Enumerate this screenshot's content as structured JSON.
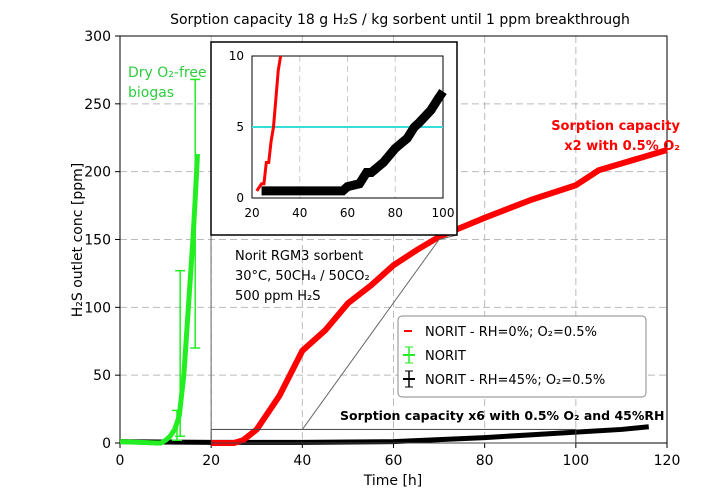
{
  "chart_data": {
    "type": "line",
    "title": "Sorption capacity 18 g H₂S / kg sorbent until 1 ppm breakthrough",
    "xlabel": "Time [h]",
    "ylabel": "H₂S outlet conc [ppm]",
    "xlim": [
      0,
      120
    ],
    "ylim": [
      0,
      300
    ],
    "xticks": [
      "0",
      "20",
      "40",
      "60",
      "80",
      "100",
      "120"
    ],
    "yticks": [
      "0",
      "50",
      "100",
      "150",
      "200",
      "250",
      "300"
    ],
    "grid": true,
    "legend_position": "lower-right",
    "series": [
      {
        "name": "NORIT - RH=0%; O₂=0.5%",
        "color": "#ff0000",
        "x": [
          20,
          25,
          27,
          30,
          35,
          40,
          45,
          50,
          55,
          60,
          65,
          70,
          75,
          80,
          90,
          100,
          105,
          110,
          115,
          120
        ],
        "y": [
          0,
          0,
          2,
          10,
          35,
          68,
          83,
          103,
          116,
          131,
          142,
          152,
          159,
          166,
          179,
          190,
          201,
          206,
          211,
          216
        ]
      },
      {
        "name": "NORIT",
        "color": "#22ee22",
        "x": [
          0,
          8,
          9,
          10,
          11,
          12,
          13,
          14,
          15,
          16,
          16.5,
          17
        ],
        "y": [
          1,
          0,
          0,
          2,
          5,
          10,
          20,
          50,
          100,
          150,
          180,
          213
        ],
        "errorbars": [
          {
            "x": 12.5,
            "low": 2,
            "high": 24
          },
          {
            "x": 13.2,
            "low": 5,
            "high": 127
          },
          {
            "x": 16.5,
            "low": 70,
            "high": 268
          }
        ]
      },
      {
        "name": "NORIT - RH=45%; O₂=0.5%",
        "color": "#000000",
        "x": [
          0,
          20,
          40,
          60,
          70,
          80,
          90,
          100,
          110,
          116
        ],
        "y": [
          1,
          0.5,
          0.5,
          1,
          2.5,
          4,
          6,
          8,
          10,
          12
        ]
      }
    ],
    "inset": {
      "xlim": [
        20,
        100
      ],
      "ylim": [
        0,
        10
      ],
      "xticks": [
        "20",
        "40",
        "60",
        "80",
        "100"
      ],
      "yticks": [
        "0",
        "5",
        "10"
      ],
      "threshold": 5,
      "threshold_color": "#33dddd",
      "red": {
        "x": [
          22,
          24,
          25,
          26,
          27,
          28,
          29,
          30,
          31,
          32
        ],
        "y": [
          0.5,
          1,
          1,
          2.5,
          2.5,
          4,
          5,
          7,
          9,
          10
        ]
      },
      "black": {
        "x": [
          24,
          40,
          58,
          60,
          65,
          68,
          70,
          75,
          80,
          85,
          88,
          90,
          95,
          98,
          100
        ],
        "y": [
          0.5,
          0.5,
          0.5,
          0.8,
          1,
          1.8,
          1.8,
          2.5,
          3.5,
          4.2,
          5,
          5.3,
          6.2,
          7,
          7.5
        ]
      }
    },
    "annotations": {
      "dry": [
        "Dry O₂-free",
        "biogas"
      ],
      "cond": [
        "Norit RGM3 sorbent",
        "30°C, 50CH₄ / 50CO₂",
        "500 ppm H₂S"
      ],
      "x2": [
        "Sorption capacity",
        "x2 with 0.5% O₂"
      ],
      "x6": "Sorption capacity x6 with 0.5% O₂ and 45%RH"
    }
  }
}
